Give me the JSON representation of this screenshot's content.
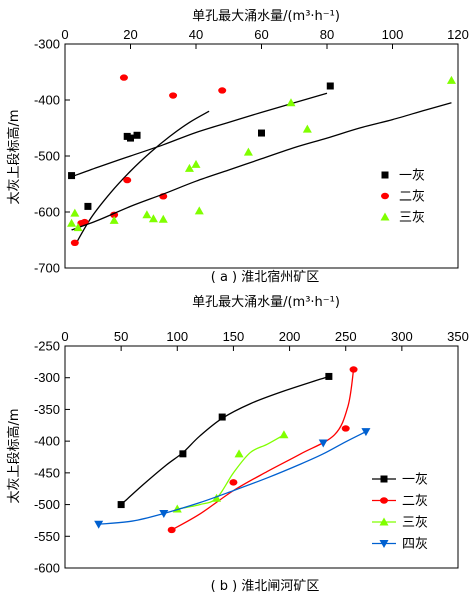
{
  "chart_data": [
    {
      "type": "scatter",
      "caption": "( a ) 淮北宿州矿区",
      "xlabel": "单孔最大涌水量/(m³·h⁻¹)",
      "ylabel": "太灰上段标高/m",
      "xlim": [
        0,
        120
      ],
      "ylim": [
        -700,
        -300
      ],
      "xticks": [
        0,
        20,
        40,
        60,
        80,
        100,
        120
      ],
      "yticks": [
        -300,
        -400,
        -500,
        -600,
        -700
      ],
      "legend_position": "right",
      "series": [
        {
          "name": "一灰",
          "marker": "square",
          "color": "#000000",
          "x": [
            2,
            7,
            19,
            20,
            22,
            60,
            81
          ],
          "y": [
            -535,
            -590,
            -465,
            -468,
            -463,
            -459,
            -375
          ],
          "fit": [
            [
              2,
              -537
            ],
            [
              10,
              -520
            ],
            [
              20,
              -500
            ],
            [
              30,
              -480
            ],
            [
              40,
              -458
            ],
            [
              50,
              -440
            ],
            [
              60,
              -422
            ],
            [
              70,
              -405
            ],
            [
              80,
              -388
            ]
          ]
        },
        {
          "name": "二灰",
          "marker": "circle",
          "color": "#ff0000",
          "x": [
            3,
            5,
            6,
            15,
            18,
            19,
            30,
            33,
            48
          ],
          "y": [
            -655,
            -620,
            -618,
            -605,
            -360,
            -543,
            -572,
            -392,
            -383
          ],
          "fit": [
            [
              3,
              -660
            ],
            [
              8,
              -610
            ],
            [
              14,
              -565
            ],
            [
              20,
              -527
            ],
            [
              26,
              -494
            ],
            [
              32,
              -465
            ],
            [
              38,
              -440
            ],
            [
              44,
              -420
            ]
          ]
        },
        {
          "name": "三灰",
          "marker": "triangle",
          "color": "#80ff00",
          "x": [
            2,
            3,
            4,
            15,
            25,
            27,
            30,
            38,
            40,
            41,
            56,
            69,
            74,
            118
          ],
          "y": [
            -620,
            -602,
            -628,
            -615,
            -605,
            -612,
            -613,
            -522,
            -515,
            -598,
            -493,
            -405,
            -452,
            -365
          ],
          "fit": [
            [
              2,
              -632
            ],
            [
              10,
              -615
            ],
            [
              20,
              -590
            ],
            [
              30,
              -568
            ],
            [
              40,
              -545
            ],
            [
              50,
              -525
            ],
            [
              60,
              -505
            ],
            [
              70,
              -485
            ],
            [
              80,
              -468
            ],
            [
              90,
              -450
            ],
            [
              100,
              -435
            ],
            [
              110,
              -418
            ],
            [
              118,
              -405
            ]
          ]
        }
      ]
    },
    {
      "type": "line",
      "caption": "( b ) 淮北闸河矿区",
      "xlabel": "单孔最大涌水量/(m³·h⁻¹)",
      "ylabel": "太灰上段标高/m",
      "xlim": [
        0,
        350
      ],
      "ylim": [
        -600,
        -250
      ],
      "xticks": [
        0,
        50,
        100,
        150,
        200,
        250,
        300,
        350
      ],
      "yticks": [
        -250,
        -300,
        -350,
        -400,
        -450,
        -500,
        -550,
        -600
      ],
      "legend_position": "right",
      "series": [
        {
          "name": "一灰",
          "marker": "square",
          "color": "#000000",
          "x": [
            50,
            105,
            140,
            235
          ],
          "y": [
            -500,
            -420,
            -362,
            -298
          ],
          "curve": [
            [
              50,
              -500
            ],
            [
              70,
              -468
            ],
            [
              90,
              -438
            ],
            [
              105,
              -418
            ],
            [
              120,
              -392
            ],
            [
              140,
              -364
            ],
            [
              165,
              -341
            ],
            [
              195,
              -321
            ],
            [
              235,
              -298
            ]
          ]
        },
        {
          "name": "二灰",
          "marker": "circle",
          "color": "#ff0000",
          "x": [
            95,
            150,
            250,
            257
          ],
          "y": [
            -540,
            -465,
            -380,
            -287
          ],
          "curve": [
            [
              95,
              -540
            ],
            [
              120,
              -515
            ],
            [
              150,
              -478
            ],
            [
              180,
              -448
            ],
            [
              210,
              -420
            ],
            [
              240,
              -390
            ],
            [
              252,
              -345
            ],
            [
              257,
              -287
            ]
          ]
        },
        {
          "name": "三灰",
          "marker": "triangle",
          "color": "#80ff00",
          "x": [
            100,
            135,
            155,
            195
          ],
          "y": [
            -507,
            -490,
            -420,
            -390
          ],
          "curve": [
            [
              100,
              -507
            ],
            [
              120,
              -500
            ],
            [
              135,
              -490
            ],
            [
              150,
              -450
            ],
            [
              165,
              -418
            ],
            [
              180,
              -405
            ],
            [
              195,
              -390
            ]
          ]
        },
        {
          "name": "四灰",
          "marker": "triangle-down",
          "color": "#0060d0",
          "x": [
            30,
            88,
            230,
            268
          ],
          "y": [
            -531,
            -514,
            -403,
            -385
          ],
          "curve": [
            [
              30,
              -531
            ],
            [
              60,
              -526
            ],
            [
              88,
              -514
            ],
            [
              120,
              -497
            ],
            [
              150,
              -478
            ],
            [
              180,
              -458
            ],
            [
              210,
              -436
            ],
            [
              230,
              -420
            ],
            [
              250,
              -401
            ],
            [
              268,
              -385
            ]
          ]
        }
      ]
    }
  ]
}
